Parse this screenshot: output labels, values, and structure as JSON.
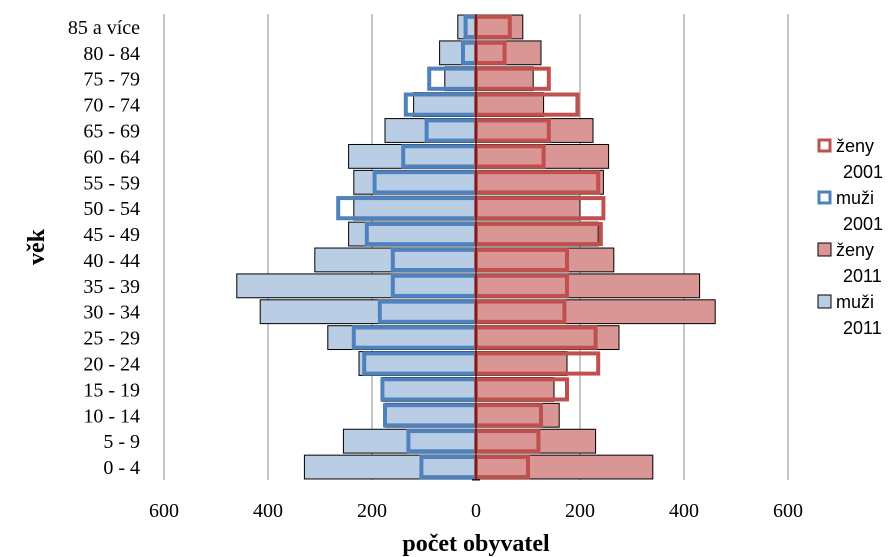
{
  "chart_data": {
    "type": "bar",
    "orientation": "horizontal",
    "layout": "population-pyramid",
    "title": "",
    "xlabel": "počet obyvatel",
    "ylabel": "věk",
    "xlim": [
      -600,
      600
    ],
    "x_ticks": [
      -600,
      -400,
      -200,
      0,
      200,
      400,
      600
    ],
    "x_tick_labels": [
      "600",
      "400",
      "200",
      "0",
      "200",
      "400",
      "600"
    ],
    "grid": "vertical",
    "legend_position": "right",
    "categories": [
      "0 - 4",
      "5 - 9",
      "10 - 14",
      "15 - 19",
      "20 - 24",
      "25 - 29",
      "30 - 34",
      "35 - 39",
      "40 - 44",
      "45 - 49",
      "50 - 54",
      "55 - 59",
      "60 - 64",
      "65 - 69",
      "70 - 74",
      "75 - 79",
      "80 - 84",
      "85 a více"
    ],
    "series": [
      {
        "name": "muži 2011",
        "legend_lines": [
          "muži",
          "2011"
        ],
        "side": "left",
        "style": "filled",
        "fill": "#b9cde5",
        "stroke": "#000000",
        "values": [
          330,
          255,
          175,
          180,
          225,
          285,
          415,
          460,
          310,
          245,
          235,
          235,
          245,
          175,
          120,
          60,
          70,
          35
        ]
      },
      {
        "name": "ženy 2011",
        "legend_lines": [
          "ženy",
          "2011"
        ],
        "side": "right",
        "style": "filled",
        "fill": "#d99694",
        "stroke": "#000000",
        "values": [
          340,
          230,
          160,
          150,
          175,
          275,
          460,
          430,
          265,
          235,
          200,
          245,
          255,
          225,
          130,
          110,
          125,
          90
        ]
      },
      {
        "name": "muži 2001",
        "legend_lines": [
          "muži",
          "2001"
        ],
        "side": "left",
        "style": "outline",
        "stroke": "#4f81bd",
        "values": [
          105,
          130,
          175,
          180,
          215,
          235,
          185,
          160,
          160,
          210,
          265,
          195,
          140,
          95,
          135,
          90,
          25,
          20
        ]
      },
      {
        "name": "ženy 2001",
        "legend_lines": [
          "ženy",
          "2001"
        ],
        "side": "right",
        "style": "outline",
        "stroke": "#c0504d",
        "values": [
          100,
          120,
          125,
          175,
          235,
          230,
          170,
          175,
          175,
          240,
          245,
          235,
          130,
          140,
          195,
          140,
          55,
          65
        ]
      }
    ],
    "legend_order": [
      "ženy 2001",
      "muži 2001",
      "ženy 2011",
      "muži 2011"
    ]
  }
}
